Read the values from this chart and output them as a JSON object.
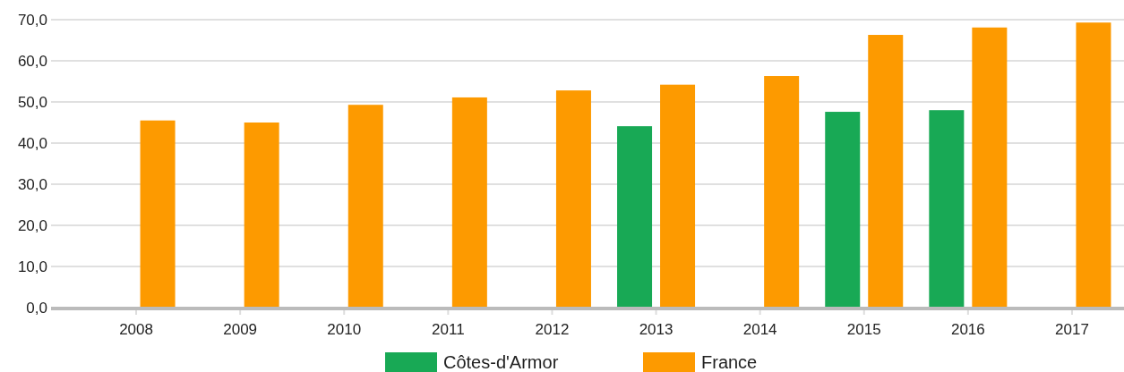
{
  "chart_data": {
    "type": "bar",
    "categories": [
      "2008",
      "2009",
      "2010",
      "2011",
      "2012",
      "2013",
      "2014",
      "2015",
      "2016",
      "2017"
    ],
    "series": [
      {
        "name": "Côtes-d'Armor",
        "color": "#18a955",
        "values": [
          null,
          null,
          null,
          null,
          null,
          44.1,
          null,
          47.6,
          48.0,
          null
        ]
      },
      {
        "name": "France",
        "color": "#fd9a00",
        "values": [
          45.5,
          45.0,
          49.3,
          51.1,
          52.8,
          54.2,
          56.3,
          66.3,
          68.1,
          69.3
        ]
      }
    ],
    "ylim": [
      0,
      70
    ],
    "yticks": [
      {
        "value": 0,
        "label": "0,0"
      },
      {
        "value": 10,
        "label": "10,0"
      },
      {
        "value": 20,
        "label": "20,0"
      },
      {
        "value": 30,
        "label": "30,0"
      },
      {
        "value": 40,
        "label": "40,0"
      },
      {
        "value": 50,
        "label": "50,0"
      },
      {
        "value": 60,
        "label": "60,0"
      },
      {
        "value": 70,
        "label": "70,0"
      }
    ],
    "grid": "y",
    "legend": "bottom"
  }
}
